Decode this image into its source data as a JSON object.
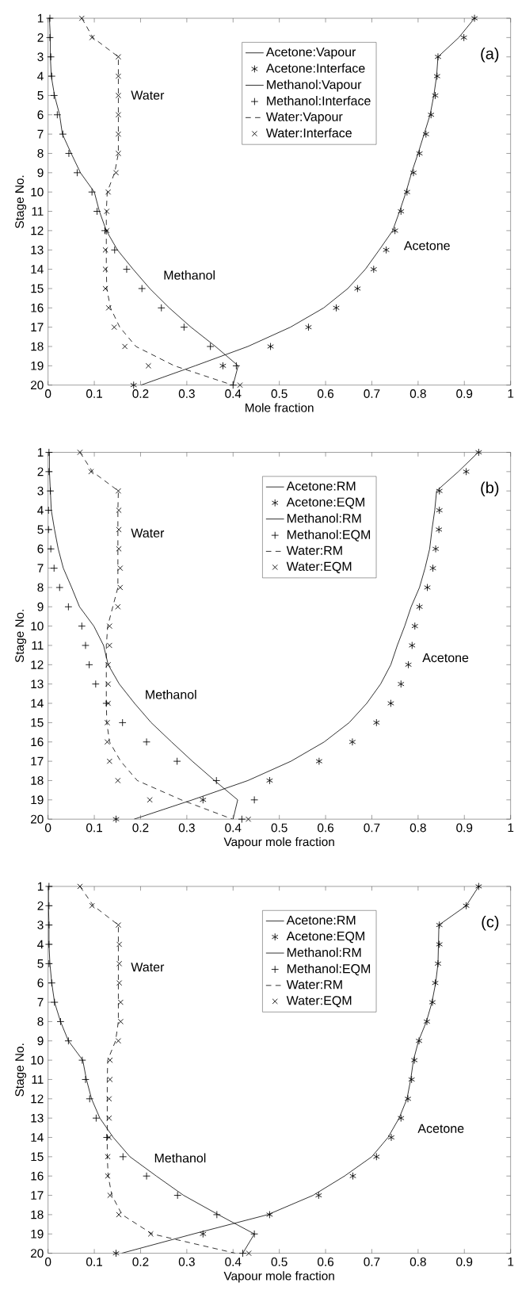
{
  "chart_data": [
    {
      "type": "line",
      "title": "(a)",
      "xlabel": "Mole fraction",
      "ylabel": "Stage No.",
      "xlim": [
        0,
        1
      ],
      "ylim": [
        20,
        1
      ],
      "xticks": [
        0,
        0.1,
        0.2,
        0.3,
        0.4,
        0.5,
        0.6,
        0.7,
        0.8,
        0.9,
        1
      ],
      "yticks": [
        1,
        2,
        3,
        4,
        5,
        6,
        7,
        8,
        9,
        10,
        11,
        12,
        13,
        14,
        15,
        16,
        17,
        18,
        19,
        20
      ],
      "legend": "top right",
      "annotations": [
        "Water",
        "Methanol",
        "Acetone"
      ],
      "series": [
        {
          "name": "Acetone:Vapour",
          "type": "line",
          "color": "#000000",
          "marker": "none",
          "line_style": "solid",
          "x": [
            0.922,
            0.888,
            0.843,
            0.84,
            0.834,
            0.826,
            0.813,
            0.8,
            0.786,
            0.774,
            0.76,
            0.745,
            0.716,
            0.686,
            0.648,
            0.596,
            0.524,
            0.432,
            0.318,
            0.201
          ],
          "values": [
            1,
            2,
            3,
            4,
            5,
            6,
            7,
            8,
            9,
            10,
            11,
            12,
            13,
            14,
            15,
            16,
            17,
            18,
            19,
            20
          ]
        },
        {
          "name": "Acetone:Interface",
          "type": "scatter",
          "color": "#000000",
          "x": [
            0.922,
            0.899,
            0.843,
            0.841,
            0.837,
            0.828,
            0.817,
            0.803,
            0.79,
            0.776,
            0.763,
            0.75,
            0.731,
            0.704,
            0.669,
            0.623,
            0.563,
            0.481,
            0.378,
            0.185
          ],
          "values": [
            1,
            2,
            3,
            4,
            5,
            6,
            7,
            8,
            9,
            10,
            11,
            12,
            13,
            14,
            15,
            16,
            17,
            18,
            19,
            20
          ]
        },
        {
          "name": "Methanol:Vapour",
          "type": "line",
          "color": "#000000",
          "marker": "none",
          "line_style": "solid",
          "x": [
            0.003,
            0.005,
            0.005,
            0.007,
            0.014,
            0.025,
            0.031,
            0.05,
            0.07,
            0.1,
            0.111,
            0.126,
            0.15,
            0.184,
            0.22,
            0.262,
            0.309,
            0.362,
            0.411,
            0.4
          ],
          "values": [
            1,
            2,
            3,
            4,
            5,
            6,
            7,
            8,
            9,
            10,
            11,
            12,
            13,
            14,
            15,
            16,
            17,
            18,
            19,
            20
          ]
        },
        {
          "name": "Methanol:Interface",
          "type": "scatter",
          "color": "#000000",
          "marker": "plus",
          "x": [
            0.004,
            0.004,
            0.006,
            0.008,
            0.013,
            0.02,
            0.032,
            0.045,
            0.063,
            0.095,
            0.106,
            0.123,
            0.144,
            0.17,
            0.203,
            0.245,
            0.294,
            0.351,
            0.407,
            0.4
          ],
          "values": [
            1,
            2,
            3,
            4,
            5,
            6,
            7,
            8,
            9,
            10,
            11,
            12,
            13,
            14,
            15,
            16,
            17,
            18,
            19,
            20
          ]
        },
        {
          "name": "Water:Vapour",
          "type": "line",
          "color": "#000000",
          "marker": "none",
          "line_style": "dashed",
          "x": [
            0.073,
            0.097,
            0.152,
            0.152,
            0.152,
            0.152,
            0.152,
            0.152,
            0.144,
            0.128,
            0.126,
            0.126,
            0.126,
            0.126,
            0.127,
            0.135,
            0.155,
            0.19,
            0.273,
            0.399
          ],
          "values": [
            1,
            2,
            3,
            4,
            5,
            6,
            7,
            8,
            9,
            10,
            11,
            12,
            13,
            14,
            15,
            16,
            17,
            18,
            19,
            20
          ]
        },
        {
          "name": "Water:Interface",
          "type": "scatter",
          "color": "#000000",
          "marker": "cross",
          "x": [
            0.073,
            0.095,
            0.152,
            0.152,
            0.152,
            0.152,
            0.152,
            0.152,
            0.147,
            0.13,
            0.127,
            0.127,
            0.124,
            0.124,
            0.124,
            0.131,
            0.143,
            0.166,
            0.217,
            0.415
          ],
          "values": [
            1,
            2,
            3,
            4,
            5,
            6,
            7,
            8,
            9,
            10,
            11,
            12,
            13,
            14,
            15,
            16,
            17,
            18,
            19,
            20
          ]
        }
      ]
    },
    {
      "type": "line",
      "title": "(b)",
      "xlabel": "Vapour mole fraction",
      "ylabel": "Stage No.",
      "xlim": [
        0,
        1
      ],
      "ylim": [
        20,
        1
      ],
      "xticks": [
        0,
        0.1,
        0.2,
        0.3,
        0.4,
        0.5,
        0.6,
        0.7,
        0.8,
        0.9,
        1
      ],
      "yticks": [
        1,
        2,
        3,
        4,
        5,
        6,
        7,
        8,
        9,
        10,
        11,
        12,
        13,
        14,
        15,
        16,
        17,
        18,
        19,
        20
      ],
      "legend": "top right",
      "annotations": [
        "Water",
        "Methanol",
        "Acetone"
      ],
      "series": [
        {
          "name": "Acetone:RM",
          "type": "line",
          "color": "#000000",
          "marker": "none",
          "line_style": "solid",
          "x": [
            0.93,
            0.887,
            0.84,
            0.836,
            0.83,
            0.825,
            0.815,
            0.803,
            0.785,
            0.771,
            0.755,
            0.741,
            0.719,
            0.689,
            0.651,
            0.597,
            0.525,
            0.432,
            0.312,
            0.186
          ],
          "values": [
            1,
            2,
            3,
            4,
            5,
            6,
            7,
            8,
            9,
            10,
            11,
            12,
            13,
            14,
            15,
            16,
            17,
            18,
            19,
            20
          ]
        },
        {
          "name": "Acetone:EQM",
          "type": "scatter",
          "color": "#000000",
          "x": [
            0.931,
            0.904,
            0.846,
            0.846,
            0.845,
            0.838,
            0.832,
            0.82,
            0.803,
            0.793,
            0.787,
            0.779,
            0.763,
            0.741,
            0.71,
            0.658,
            0.586,
            0.479,
            0.335,
            0.147
          ],
          "values": [
            1,
            2,
            3,
            4,
            5,
            6,
            7,
            8,
            9,
            10,
            11,
            12,
            13,
            14,
            15,
            16,
            17,
            18,
            19,
            20
          ]
        },
        {
          "name": "Methanol:RM",
          "type": "line",
          "color": "#000000",
          "marker": "none",
          "line_style": "solid",
          "x": [
            0.003,
            0.003,
            0.005,
            0.007,
            0.014,
            0.022,
            0.033,
            0.051,
            0.068,
            0.099,
            0.12,
            0.13,
            0.154,
            0.187,
            0.223,
            0.267,
            0.312,
            0.36,
            0.41,
            0.4
          ],
          "values": [
            1,
            2,
            3,
            4,
            5,
            6,
            7,
            8,
            9,
            10,
            11,
            12,
            13,
            14,
            15,
            16,
            17,
            18,
            19,
            20
          ]
        },
        {
          "name": "Methanol:EQM",
          "type": "scatter",
          "color": "#000000",
          "marker": "plus",
          "x": [
            0.002,
            0.002,
            0.005,
            0.001,
            0.001,
            0.006,
            0.013,
            0.025,
            0.044,
            0.073,
            0.081,
            0.089,
            0.103,
            0.126,
            0.161,
            0.213,
            0.279,
            0.364,
            0.446,
            0.419
          ],
          "values": [
            1,
            2,
            3,
            4,
            5,
            6,
            7,
            8,
            9,
            10,
            11,
            12,
            13,
            14,
            15,
            16,
            17,
            18,
            19,
            20
          ]
        },
        {
          "name": "Water:RM",
          "type": "line",
          "color": "#000000",
          "marker": "none",
          "line_style": "dashed",
          "x": [
            0.069,
            0.096,
            0.152,
            0.151,
            0.151,
            0.151,
            0.151,
            0.151,
            0.14,
            0.129,
            0.126,
            0.126,
            0.126,
            0.126,
            0.127,
            0.133,
            0.157,
            0.193,
            0.288,
            0.399
          ],
          "values": [
            1,
            2,
            3,
            4,
            5,
            6,
            7,
            8,
            9,
            10,
            11,
            12,
            13,
            14,
            15,
            16,
            17,
            18,
            19,
            20
          ]
        },
        {
          "name": "Water:EQM",
          "type": "scatter",
          "color": "#000000",
          "marker": "cross",
          "x": [
            0.069,
            0.093,
            0.152,
            0.153,
            0.153,
            0.153,
            0.156,
            0.156,
            0.151,
            0.133,
            0.133,
            0.13,
            0.13,
            0.13,
            0.128,
            0.128,
            0.133,
            0.151,
            0.22,
            0.433
          ],
          "values": [
            1,
            2,
            3,
            4,
            5,
            6,
            7,
            8,
            9,
            10,
            11,
            12,
            13,
            14,
            15,
            16,
            17,
            18,
            19,
            20
          ]
        }
      ]
    },
    {
      "type": "line",
      "title": "(c)",
      "xlabel": "Vapour mole fraction",
      "ylabel": "Stage No.",
      "xlim": [
        0,
        1
      ],
      "ylim": [
        20,
        1
      ],
      "xticks": [
        0,
        0.1,
        0.2,
        0.3,
        0.4,
        0.5,
        0.6,
        0.7,
        0.8,
        0.9,
        1
      ],
      "yticks": [
        1,
        2,
        3,
        4,
        5,
        6,
        7,
        8,
        9,
        10,
        11,
        12,
        13,
        14,
        15,
        16,
        17,
        18,
        19,
        20
      ],
      "legend": "top right",
      "annotations": [
        "Water",
        "Methanol",
        "Acetone"
      ],
      "series": [
        {
          "name": "Acetone:RM",
          "type": "line",
          "color": "#000000",
          "marker": "none",
          "line_style": "solid",
          "x": [
            0.931,
            0.904,
            0.845,
            0.844,
            0.843,
            0.838,
            0.83,
            0.818,
            0.801,
            0.79,
            0.784,
            0.776,
            0.759,
            0.735,
            0.7,
            0.641,
            0.573,
            0.475,
            0.314,
            0.159
          ],
          "values": [
            1,
            2,
            3,
            4,
            5,
            6,
            7,
            8,
            9,
            10,
            11,
            12,
            13,
            14,
            15,
            16,
            17,
            18,
            19,
            20
          ]
        },
        {
          "name": "Acetone:EQM",
          "type": "scatter",
          "color": "#000000",
          "x": [
            0.931,
            0.904,
            0.846,
            0.846,
            0.843,
            0.837,
            0.831,
            0.819,
            0.802,
            0.792,
            0.786,
            0.778,
            0.763,
            0.742,
            0.71,
            0.659,
            0.585,
            0.479,
            0.335,
            0.147
          ],
          "values": [
            1,
            2,
            3,
            4,
            5,
            6,
            7,
            8,
            9,
            10,
            11,
            12,
            13,
            14,
            15,
            16,
            17,
            18,
            19,
            20
          ]
        },
        {
          "name": "Methanol:RM",
          "type": "line",
          "color": "#000000",
          "marker": "none",
          "line_style": "solid",
          "x": [
            0.001,
            0.001,
            0.002,
            0.002,
            0.004,
            0.008,
            0.014,
            0.027,
            0.044,
            0.075,
            0.083,
            0.094,
            0.112,
            0.141,
            0.177,
            0.234,
            0.293,
            0.368,
            0.446,
            0.421
          ],
          "values": [
            1,
            2,
            3,
            4,
            5,
            6,
            7,
            8,
            9,
            10,
            11,
            12,
            13,
            14,
            15,
            16,
            17,
            18,
            19,
            20
          ]
        },
        {
          "name": "Methanol:EQM",
          "type": "scatter",
          "color": "#000000",
          "marker": "plus",
          "x": [
            0.002,
            0.002,
            0.002,
            0.002,
            0.002,
            0.008,
            0.014,
            0.027,
            0.044,
            0.074,
            0.081,
            0.09,
            0.104,
            0.127,
            0.162,
            0.213,
            0.28,
            0.365,
            0.446,
            0.421
          ],
          "values": [
            1,
            2,
            3,
            4,
            5,
            6,
            7,
            8,
            9,
            10,
            11,
            12,
            13,
            14,
            15,
            16,
            17,
            18,
            19,
            20
          ]
        },
        {
          "name": "Water:RM",
          "type": "line",
          "color": "#000000",
          "marker": "none",
          "line_style": "dashed",
          "x": [
            0.069,
            0.098,
            0.152,
            0.152,
            0.152,
            0.152,
            0.152,
            0.152,
            0.146,
            0.129,
            0.128,
            0.128,
            0.128,
            0.128,
            0.128,
            0.13,
            0.138,
            0.16,
            0.225,
            0.405
          ],
          "values": [
            1,
            2,
            3,
            4,
            5,
            6,
            7,
            8,
            9,
            10,
            11,
            12,
            13,
            14,
            15,
            16,
            17,
            18,
            19,
            20
          ]
        },
        {
          "name": "Water:EQM",
          "type": "scatter",
          "color": "#000000",
          "marker": "cross",
          "x": [
            0.069,
            0.095,
            0.152,
            0.154,
            0.154,
            0.154,
            0.157,
            0.157,
            0.152,
            0.134,
            0.134,
            0.132,
            0.132,
            0.132,
            0.129,
            0.129,
            0.134,
            0.153,
            0.222,
            0.434
          ],
          "values": [
            1,
            2,
            3,
            4,
            5,
            6,
            7,
            8,
            9,
            10,
            11,
            12,
            13,
            14,
            15,
            16,
            17,
            18,
            19,
            20
          ]
        }
      ]
    }
  ]
}
